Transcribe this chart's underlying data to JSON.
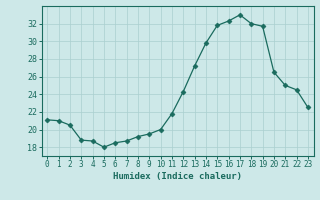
{
  "x": [
    0,
    1,
    2,
    3,
    4,
    5,
    6,
    7,
    8,
    9,
    10,
    11,
    12,
    13,
    14,
    15,
    16,
    17,
    18,
    19,
    20,
    21,
    22,
    23
  ],
  "y": [
    21.1,
    21.0,
    20.5,
    18.8,
    18.7,
    18.0,
    18.5,
    18.7,
    19.2,
    19.5,
    20.0,
    21.8,
    24.3,
    27.2,
    29.8,
    31.8,
    32.3,
    33.0,
    32.0,
    31.7,
    26.5,
    25.0,
    24.5,
    22.5
  ],
  "line_color": "#1a6b5e",
  "marker": "D",
  "marker_size": 2.5,
  "background_color": "#cde8e8",
  "grid_color": "#aacfcf",
  "xlabel": "Humidex (Indice chaleur)",
  "ylim": [
    17,
    34
  ],
  "xlim": [
    -0.5,
    23.5
  ],
  "yticks": [
    18,
    20,
    22,
    24,
    26,
    28,
    30,
    32
  ],
  "xticks": [
    0,
    1,
    2,
    3,
    4,
    5,
    6,
    7,
    8,
    9,
    10,
    11,
    12,
    13,
    14,
    15,
    16,
    17,
    18,
    19,
    20,
    21,
    22,
    23
  ],
  "tick_color": "#1a6b5e",
  "label_color": "#1a6b5e",
  "spine_color": "#1a6b5e"
}
